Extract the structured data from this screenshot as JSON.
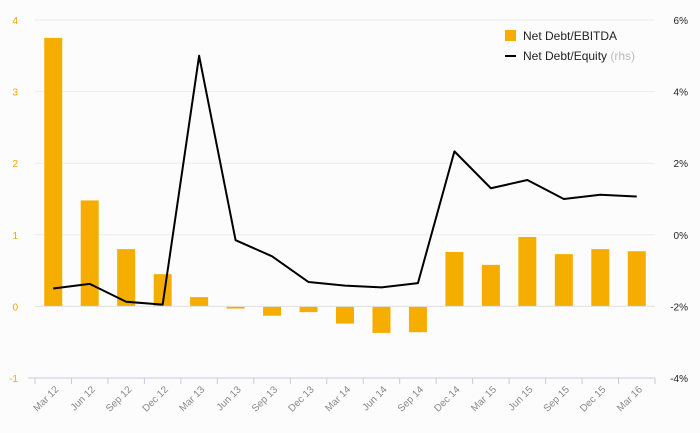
{
  "chart_data": {
    "type": "bar+line",
    "categories": [
      "Mar 12",
      "Jun 12",
      "Sep 12",
      "Dec 12",
      "Mar 13",
      "Jun 13",
      "Sep 13",
      "Dec 13",
      "Mar 14",
      "Jun 14",
      "Sep 14",
      "Dec 14",
      "Mar 15",
      "Jun 15",
      "Sep 15",
      "Dec 15",
      "Mar 16"
    ],
    "series": [
      {
        "name": "Net Debt/EBITDA",
        "type": "bar",
        "axis": "left",
        "color": "#f5ad00",
        "values": [
          3.75,
          1.48,
          0.8,
          0.45,
          0.13,
          -0.03,
          -0.13,
          -0.08,
          -0.24,
          -0.37,
          -0.36,
          0.76,
          0.58,
          0.97,
          0.73,
          0.8,
          0.77
        ]
      },
      {
        "name": "Net Debt/Equity",
        "name_suffix": "(rhs)",
        "type": "line",
        "axis": "right",
        "color": "#000000",
        "values": [
          -1.5,
          -1.37,
          -1.87,
          -1.95,
          5.0,
          -0.15,
          -0.6,
          -1.32,
          -1.42,
          -1.47,
          -1.35,
          2.33,
          1.3,
          1.53,
          1.0,
          1.12,
          1.07
        ]
      }
    ],
    "y_left": {
      "min": -1,
      "max": 4,
      "ticks": [
        "4",
        "3",
        "2",
        "1",
        "0",
        "-1"
      ],
      "tick_values": [
        4,
        3,
        2,
        1,
        0,
        -1
      ]
    },
    "y_right": {
      "min": -4,
      "max": 6,
      "ticks": [
        "6%",
        "4%",
        "2%",
        "0%",
        "-2%",
        "-4%"
      ],
      "tick_values": [
        6,
        4,
        2,
        0,
        -2,
        -4
      ]
    },
    "grid": true,
    "legend_position": "top-right"
  }
}
